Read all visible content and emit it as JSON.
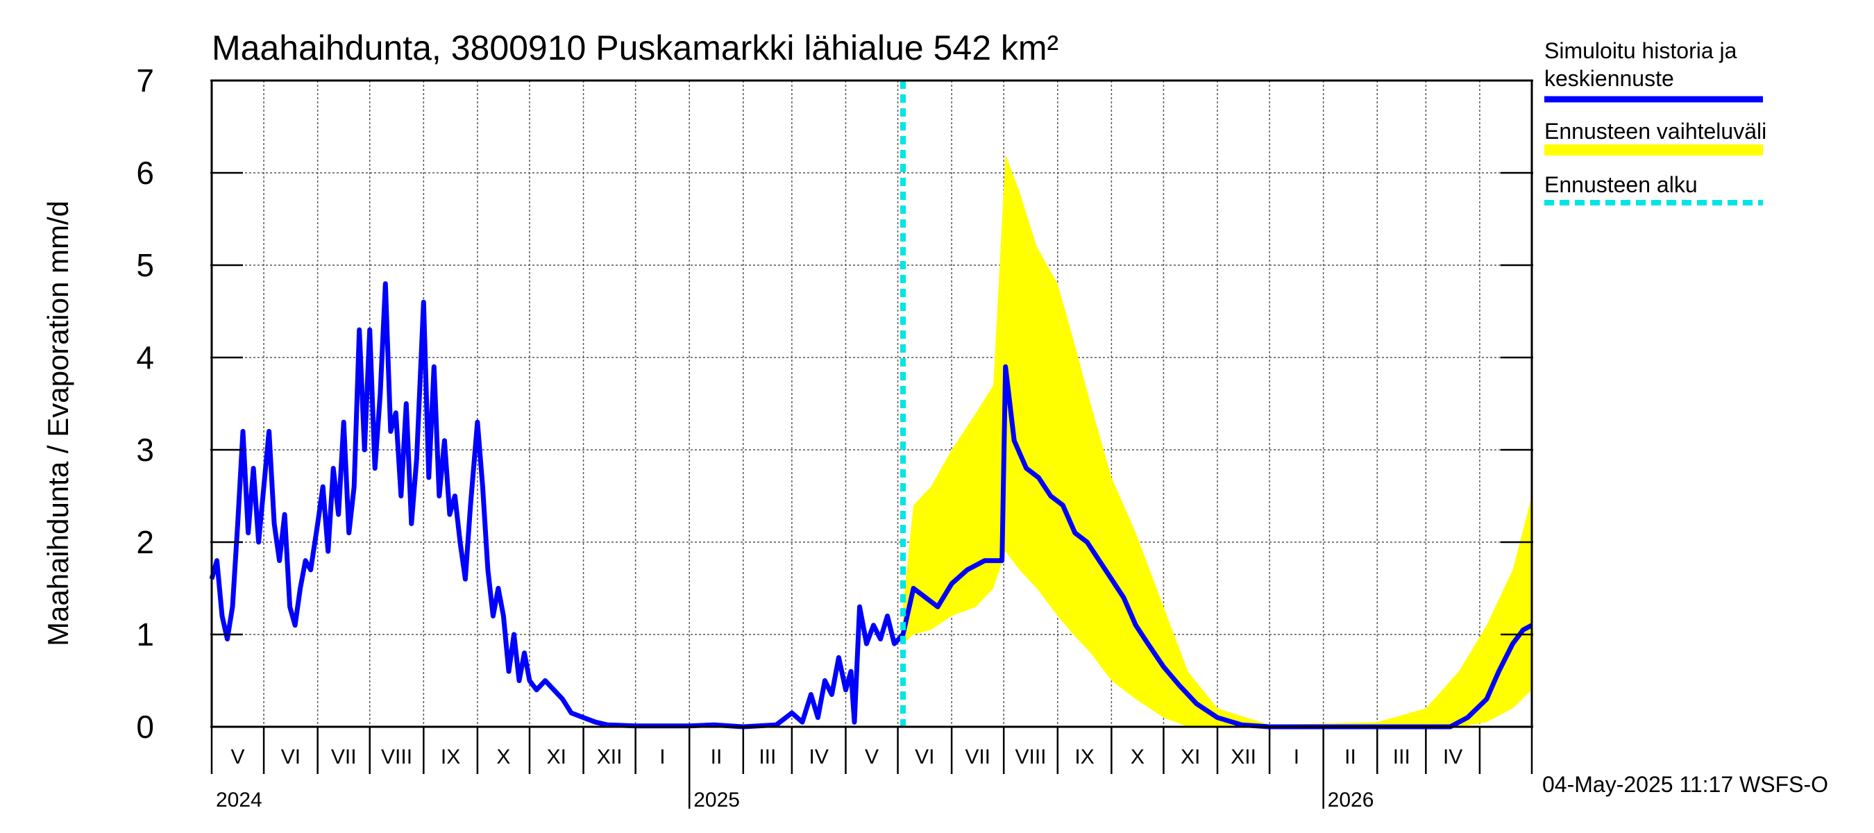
{
  "chart_data": {
    "type": "line",
    "title": "Maahaihdunta, 3800910 Puskamarkki lähialue 542 km²",
    "ylabel": "Maahaihdunta / Evaporation   mm/d",
    "ylim": [
      0,
      7
    ],
    "yticks": [
      "0",
      "1",
      "2",
      "3",
      "4",
      "5",
      "6",
      "7"
    ],
    "xlim": [
      "2024-04-01",
      "2026-05-01"
    ],
    "month_labels": [
      "V",
      "VI",
      "VII",
      "VIII",
      "IX",
      "X",
      "XI",
      "XII",
      "I",
      "II",
      "III",
      "IV",
      "V",
      "VI",
      "VII",
      "VIII",
      "IX",
      "X",
      "XI",
      "XII",
      "I",
      "II",
      "III",
      "IV"
    ],
    "year_labels": [
      "2024",
      "2025",
      "2026"
    ],
    "grid": true,
    "legend_position": "right",
    "forecast_start": "2025-05-04",
    "series": [
      {
        "name": "Simuloitu historia ja keskiennuste",
        "color": "#0000ff",
        "points": [
          [
            "2024-04-01",
            1.6
          ],
          [
            "2024-04-04",
            1.8
          ],
          [
            "2024-04-07",
            1.2
          ],
          [
            "2024-04-10",
            0.95
          ],
          [
            "2024-04-13",
            1.3
          ],
          [
            "2024-04-16",
            2.2
          ],
          [
            "2024-04-19",
            3.2
          ],
          [
            "2024-04-22",
            2.1
          ],
          [
            "2024-04-25",
            2.8
          ],
          [
            "2024-04-28",
            2.0
          ],
          [
            "2024-05-01",
            2.6
          ],
          [
            "2024-05-04",
            3.2
          ],
          [
            "2024-05-07",
            2.2
          ],
          [
            "2024-05-10",
            1.8
          ],
          [
            "2024-05-13",
            2.3
          ],
          [
            "2024-05-16",
            1.3
          ],
          [
            "2024-05-19",
            1.1
          ],
          [
            "2024-05-22",
            1.5
          ],
          [
            "2024-05-25",
            1.8
          ],
          [
            "2024-05-28",
            1.7
          ],
          [
            "2024-06-01",
            2.2
          ],
          [
            "2024-06-04",
            2.6
          ],
          [
            "2024-06-07",
            1.9
          ],
          [
            "2024-06-10",
            2.8
          ],
          [
            "2024-06-13",
            2.3
          ],
          [
            "2024-06-16",
            3.3
          ],
          [
            "2024-06-19",
            2.1
          ],
          [
            "2024-06-22",
            2.6
          ],
          [
            "2024-06-25",
            4.3
          ],
          [
            "2024-06-28",
            3.0
          ],
          [
            "2024-07-01",
            4.3
          ],
          [
            "2024-07-04",
            2.8
          ],
          [
            "2024-07-07",
            3.6
          ],
          [
            "2024-07-10",
            4.8
          ],
          [
            "2024-07-13",
            3.2
          ],
          [
            "2024-07-16",
            3.4
          ],
          [
            "2024-07-19",
            2.5
          ],
          [
            "2024-07-22",
            3.5
          ],
          [
            "2024-07-25",
            2.2
          ],
          [
            "2024-07-28",
            2.9
          ],
          [
            "2024-08-01",
            4.6
          ],
          [
            "2024-08-04",
            2.7
          ],
          [
            "2024-08-07",
            3.9
          ],
          [
            "2024-08-10",
            2.5
          ],
          [
            "2024-08-13",
            3.1
          ],
          [
            "2024-08-16",
            2.3
          ],
          [
            "2024-08-19",
            2.5
          ],
          [
            "2024-08-22",
            2.0
          ],
          [
            "2024-08-25",
            1.6
          ],
          [
            "2024-08-28",
            2.4
          ],
          [
            "2024-09-01",
            3.3
          ],
          [
            "2024-09-04",
            2.6
          ],
          [
            "2024-09-07",
            1.7
          ],
          [
            "2024-09-10",
            1.2
          ],
          [
            "2024-09-13",
            1.5
          ],
          [
            "2024-09-16",
            1.2
          ],
          [
            "2024-09-19",
            0.6
          ],
          [
            "2024-09-22",
            1.0
          ],
          [
            "2024-09-25",
            0.5
          ],
          [
            "2024-09-28",
            0.8
          ],
          [
            "2024-10-01",
            0.5
          ],
          [
            "2024-10-05",
            0.4
          ],
          [
            "2024-10-10",
            0.5
          ],
          [
            "2024-10-15",
            0.4
          ],
          [
            "2024-10-20",
            0.3
          ],
          [
            "2024-10-25",
            0.15
          ],
          [
            "2024-11-01",
            0.1
          ],
          [
            "2024-11-08",
            0.05
          ],
          [
            "2024-11-15",
            0.02
          ],
          [
            "2024-12-01",
            0.01
          ],
          [
            "2025-01-01",
            0.01
          ],
          [
            "2025-01-15",
            0.02
          ],
          [
            "2025-02-01",
            0.0
          ],
          [
            "2025-02-20",
            0.02
          ],
          [
            "2025-03-01",
            0.15
          ],
          [
            "2025-03-07",
            0.05
          ],
          [
            "2025-03-12",
            0.35
          ],
          [
            "2025-03-16",
            0.1
          ],
          [
            "2025-03-20",
            0.5
          ],
          [
            "2025-03-24",
            0.35
          ],
          [
            "2025-03-28",
            0.75
          ],
          [
            "2025-04-01",
            0.4
          ],
          [
            "2025-04-04",
            0.6
          ],
          [
            "2025-04-06",
            0.05
          ],
          [
            "2025-04-09",
            1.3
          ],
          [
            "2025-04-13",
            0.9
          ],
          [
            "2025-04-17",
            1.1
          ],
          [
            "2025-04-21",
            0.95
          ],
          [
            "2025-04-25",
            1.2
          ],
          [
            "2025-04-29",
            0.9
          ],
          [
            "2025-05-04",
            1.0
          ],
          [
            "2025-05-10",
            1.5
          ],
          [
            "2025-05-17",
            1.4
          ],
          [
            "2025-05-24",
            1.3
          ],
          [
            "2025-06-01",
            1.55
          ],
          [
            "2025-06-10",
            1.7
          ],
          [
            "2025-06-20",
            1.8
          ],
          [
            "2025-06-30",
            1.8
          ],
          [
            "2025-07-02",
            3.9
          ],
          [
            "2025-07-07",
            3.1
          ],
          [
            "2025-07-14",
            2.8
          ],
          [
            "2025-07-21",
            2.7
          ],
          [
            "2025-07-28",
            2.5
          ],
          [
            "2025-08-04",
            2.4
          ],
          [
            "2025-08-11",
            2.1
          ],
          [
            "2025-08-18",
            2.0
          ],
          [
            "2025-08-25",
            1.8
          ],
          [
            "2025-09-01",
            1.6
          ],
          [
            "2025-09-08",
            1.4
          ],
          [
            "2025-09-15",
            1.1
          ],
          [
            "2025-09-22",
            0.9
          ],
          [
            "2025-10-01",
            0.65
          ],
          [
            "2025-10-10",
            0.45
          ],
          [
            "2025-10-20",
            0.25
          ],
          [
            "2025-11-01",
            0.1
          ],
          [
            "2025-11-15",
            0.02
          ],
          [
            "2025-12-01",
            0.0
          ],
          [
            "2026-02-01",
            0.0
          ],
          [
            "2026-03-15",
            0.0
          ],
          [
            "2026-03-25",
            0.1
          ],
          [
            "2026-04-05",
            0.3
          ],
          [
            "2026-04-12",
            0.6
          ],
          [
            "2026-04-20",
            0.9
          ],
          [
            "2026-04-26",
            1.05
          ],
          [
            "2026-05-01",
            1.1
          ]
        ]
      },
      {
        "name": "Ennusteen vaihteluväli",
        "color": "#ffff00",
        "points": [
          [
            "2025-05-04",
            0.9,
            1.3
          ],
          [
            "2025-05-10",
            1.0,
            2.4
          ],
          [
            "2025-05-20",
            1.05,
            2.6
          ],
          [
            "2025-06-01",
            1.2,
            3.0
          ],
          [
            "2025-06-15",
            1.3,
            3.4
          ],
          [
            "2025-06-25",
            1.5,
            3.7
          ],
          [
            "2025-07-02",
            1.9,
            6.2
          ],
          [
            "2025-07-10",
            1.7,
            5.8
          ],
          [
            "2025-07-20",
            1.5,
            5.2
          ],
          [
            "2025-08-01",
            1.2,
            4.8
          ],
          [
            "2025-08-10",
            1.0,
            4.2
          ],
          [
            "2025-08-20",
            0.8,
            3.5
          ],
          [
            "2025-09-01",
            0.5,
            2.7
          ],
          [
            "2025-09-15",
            0.3,
            2.1
          ],
          [
            "2025-10-01",
            0.1,
            1.3
          ],
          [
            "2025-10-15",
            0.0,
            0.6
          ],
          [
            "2025-11-01",
            0.0,
            0.2
          ],
          [
            "2025-12-01",
            0.0,
            0.02
          ],
          [
            "2026-02-01",
            0.0,
            0.05
          ],
          [
            "2026-03-01",
            0.0,
            0.2
          ],
          [
            "2026-03-20",
            0.0,
            0.6
          ],
          [
            "2026-04-05",
            0.05,
            1.1
          ],
          [
            "2026-04-20",
            0.2,
            1.7
          ],
          [
            "2026-05-01",
            0.4,
            2.5
          ]
        ]
      },
      {
        "name": "Ennusteen alku",
        "color": "#00e5e5"
      }
    ]
  },
  "legend": [
    {
      "label": "Simuloitu historia ja keskiennuste",
      "color": "#0000ff",
      "style": "solid"
    },
    {
      "label": "Ennusteen vaihteluväli",
      "color": "#ffff00",
      "style": "solid"
    },
    {
      "label": "Ennusteen alku",
      "color": "#00e5e5",
      "style": "dashed"
    }
  ],
  "footer": "04-May-2025 11:17 WSFS-O"
}
